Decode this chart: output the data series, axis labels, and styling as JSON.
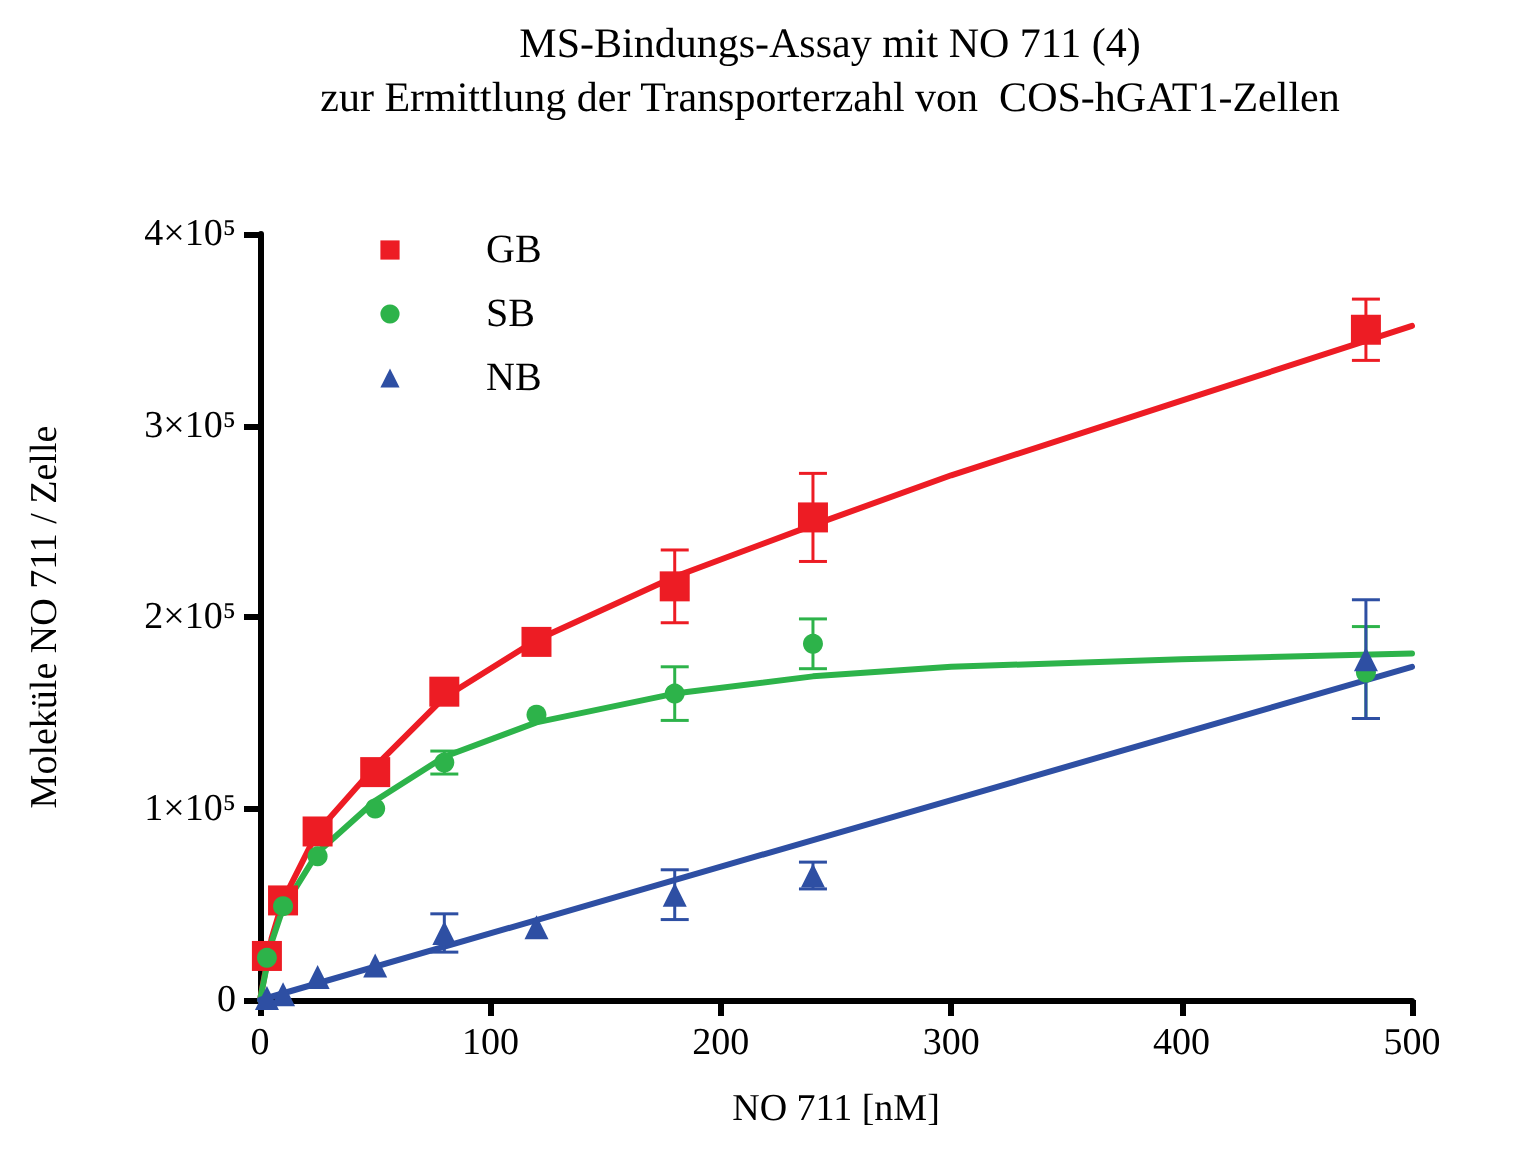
{
  "chart_data": {
    "type": "scatter",
    "title": "MS-Bindungs-Assay mit NO 711 (4)",
    "subtitle": "zur Ermittlung der Transporterzahl von  COS-hGAT1-Zellen",
    "xlabel": "NO 711 [nM]",
    "ylabel": "Moleküle NO 711 / Zelle",
    "x": [
      3,
      10,
      25,
      50,
      80,
      120,
      180,
      240,
      480
    ],
    "series": [
      {
        "name": "GB",
        "color": "#ed1c24",
        "marker": "square",
        "values": [
          23000,
          52000,
          88000,
          119000,
          161000,
          187000,
          216000,
          252000,
          350000
        ],
        "errors": [
          null,
          null,
          null,
          null,
          null,
          null,
          19000,
          23000,
          16000
        ]
      },
      {
        "name": "SB",
        "color": "#2db34a",
        "marker": "circle",
        "values": [
          22000,
          49000,
          75000,
          100000,
          124000,
          149000,
          160000,
          186000,
          171000
        ],
        "errors": [
          null,
          null,
          null,
          null,
          6000,
          null,
          14000,
          13000,
          24000
        ]
      },
      {
        "name": "NB",
        "color": "#2e4fa3",
        "marker": "triangle",
        "values": [
          1000,
          3000,
          12000,
          18000,
          35000,
          38000,
          55000,
          65000,
          178000
        ],
        "errors": [
          null,
          null,
          null,
          null,
          10000,
          null,
          13000,
          7000,
          31000
        ]
      },
      {
        "type": "line",
        "color": "#ed1c24",
        "marker": "none",
        "x": [
          0,
          5,
          10,
          25,
          50,
          80,
          120,
          180,
          240,
          300,
          400,
          500
        ],
        "values": [
          0,
          32000,
          52000,
          88000,
          122000,
          158000,
          188000,
          221000,
          248000,
          274000,
          313000,
          352000
        ]
      },
      {
        "type": "line",
        "color": "#2db34a",
        "marker": "none",
        "x": [
          0,
          5,
          10,
          25,
          50,
          80,
          120,
          180,
          240,
          300,
          400,
          500
        ],
        "values": [
          0,
          30000,
          48000,
          77000,
          104000,
          127000,
          145000,
          160000,
          169000,
          174000,
          178000,
          181000
        ]
      },
      {
        "type": "line",
        "color": "#2e4fa3",
        "marker": "none",
        "x": [
          0,
          500
        ],
        "values": [
          0,
          174000
        ]
      }
    ],
    "xlim": [
      0,
      500
    ],
    "xticks": [
      0,
      100,
      200,
      300,
      400,
      500
    ],
    "ylim": [
      0,
      400000
    ],
    "yticks": [
      0,
      {
        "value": 100000,
        "label": "1×10⁵"
      },
      {
        "value": 200000,
        "label": "2×10⁵"
      },
      {
        "value": 300000,
        "label": "3×10⁵"
      },
      {
        "value": 400000,
        "label": "4×10⁵"
      }
    ],
    "grid": false,
    "legend": "top left"
  }
}
